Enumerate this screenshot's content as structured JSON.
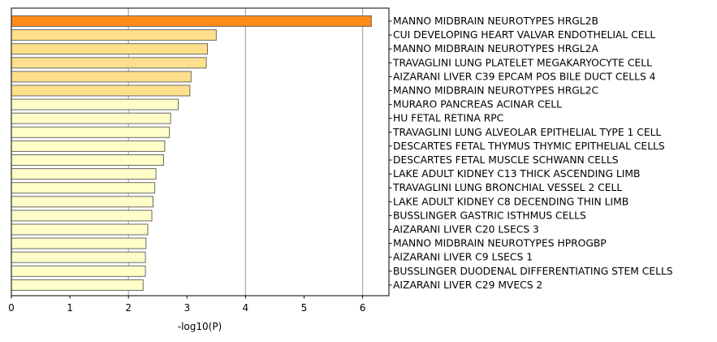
{
  "chart_data": {
    "type": "bar",
    "orientation": "horizontal",
    "xlabel": "-log10(P)",
    "ylabel": "",
    "xlim": [
      0,
      6.45
    ],
    "xticks": [
      0,
      1,
      2,
      3,
      4,
      5,
      6
    ],
    "grid": "vertical lines at x = 2, 4, 6",
    "categories": [
      "MANNO MIDBRAIN NEUROTYPES HRGL2B",
      "CUI DEVELOPING HEART VALVAR ENDOTHELIAL CELL",
      "MANNO MIDBRAIN NEUROTYPES HRGL2A",
      "TRAVAGLINI LUNG PLATELET MEGAKARYOCYTE CELL",
      "AIZARANI LIVER C39 EPCAM POS BILE DUCT CELLS 4",
      "MANNO MIDBRAIN NEUROTYPES HRGL2C",
      "MURARO PANCREAS ACINAR CELL",
      "HU FETAL RETINA RPC",
      "TRAVAGLINI LUNG ALVEOLAR EPITHELIAL TYPE 1 CELL",
      "DESCARTES FETAL THYMUS THYMIC EPITHELIAL CELLS",
      "DESCARTES FETAL MUSCLE SCHWANN CELLS",
      "LAKE ADULT KIDNEY C13 THICK ASCENDING LIMB",
      "TRAVAGLINI LUNG BRONCHIAL VESSEL 2 CELL",
      "LAKE ADULT KIDNEY C8 DECENDING THIN LIMB",
      "BUSSLINGER GASTRIC ISTHMUS CELLS",
      "AIZARANI LIVER C20 LSECS 3",
      "MANNO MIDBRAIN NEUROTYPES HPROGBP",
      "AIZARANI LIVER C9 LSECS 1",
      "BUSSLINGER DUODENAL DIFFERENTIATING STEM CELLS",
      "AIZARANI LIVER C29 MVECS 2"
    ],
    "values": [
      6.15,
      3.5,
      3.35,
      3.33,
      3.07,
      3.05,
      2.85,
      2.72,
      2.7,
      2.62,
      2.6,
      2.47,
      2.45,
      2.42,
      2.4,
      2.33,
      2.3,
      2.29,
      2.29,
      2.25
    ],
    "bar_colors": [
      "#ff8c1a",
      "#fedf8b",
      "#fedf8b",
      "#fedf8b",
      "#fedf8b",
      "#fedf8b",
      "#fffec8",
      "#fffec8",
      "#fffec8",
      "#fffec8",
      "#fffec8",
      "#fffec8",
      "#fffec8",
      "#fffec8",
      "#fffec8",
      "#fffec8",
      "#fffec8",
      "#fffec8",
      "#fffec8",
      "#fffec8"
    ],
    "bar_edge_color": "#6a6a6a",
    "grid_color": "#b0b0b0"
  }
}
